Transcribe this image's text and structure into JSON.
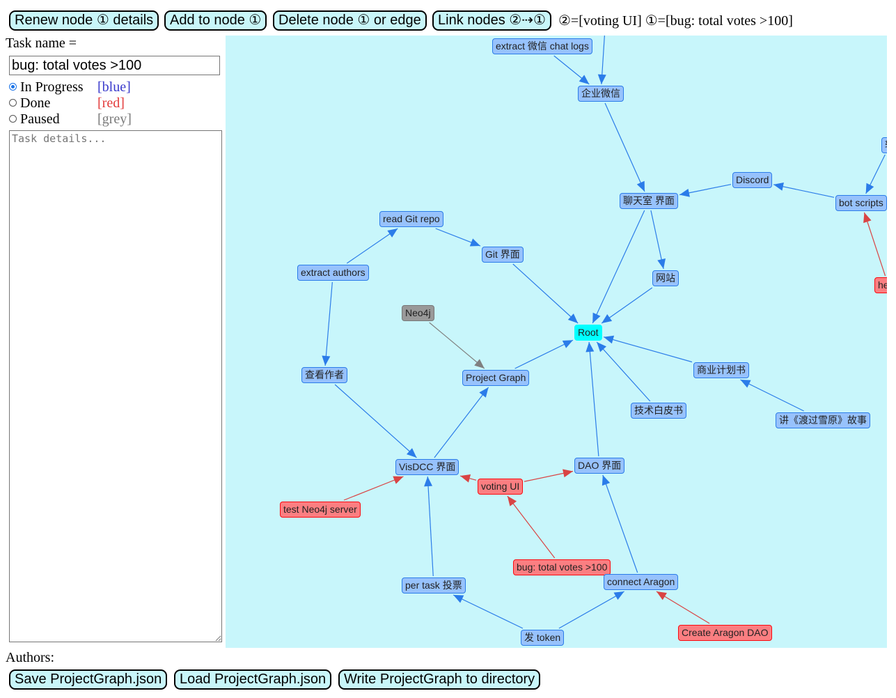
{
  "toolbar": {
    "renew": "Renew node ① details",
    "add": "Add to node ①",
    "delete": "Delete node ① or edge",
    "link": "Link nodes ②⇢①",
    "selection_legend": "②=[voting UI] ①=[bug: total votes >100]"
  },
  "form": {
    "task_name_label": "Task name =",
    "task_name_value": "bug: total votes >100",
    "statuses": [
      {
        "label": "In Progress",
        "color_hint": "[blue]",
        "checked": true
      },
      {
        "label": "Done",
        "color_hint": "[red]",
        "checked": false
      },
      {
        "label": "Paused",
        "color_hint": "[grey]",
        "checked": false
      }
    ],
    "details_placeholder": "Task details...",
    "authors_label": "Authors:"
  },
  "footer": {
    "save": "Save ProjectGraph.json",
    "load": "Load ProjectGraph.json",
    "write": "Write ProjectGraph to directory"
  },
  "colors": {
    "status_blue": "#3a3acc",
    "status_red": "#e33b3b",
    "status_grey": "#7a7a7a",
    "graph_bg": "#c8f6fb",
    "edge_blue": "#2b7ce9",
    "edge_red": "#d94444",
    "edge_grey": "#808080"
  },
  "graph": {
    "nodes": [
      {
        "id": "wechat_logs",
        "label": "extract 微信 chat logs",
        "kind": "blue"
      },
      {
        "id": "qywx",
        "label": "企业微信",
        "kind": "blue"
      },
      {
        "id": "zhuan",
        "label": "转",
        "kind": "blue"
      },
      {
        "id": "discord",
        "label": "Discord",
        "kind": "blue"
      },
      {
        "id": "bot",
        "label": "bot scripts",
        "kind": "blue"
      },
      {
        "id": "chatroom",
        "label": "聊天室 界面",
        "kind": "blue"
      },
      {
        "id": "hello",
        "label": "hello",
        "kind": "red"
      },
      {
        "id": "gitrepo",
        "label": "read Git repo",
        "kind": "blue"
      },
      {
        "id": "gitui",
        "label": "Git 界面",
        "kind": "blue"
      },
      {
        "id": "authors",
        "label": "extract authors",
        "kind": "blue"
      },
      {
        "id": "website",
        "label": "网站",
        "kind": "blue"
      },
      {
        "id": "neo4j",
        "label": "Neo4j",
        "kind": "grey"
      },
      {
        "id": "root",
        "label": "Root",
        "kind": "root"
      },
      {
        "id": "bizplan",
        "label": "商业计划书",
        "kind": "blue"
      },
      {
        "id": "viewauth",
        "label": "查看作者",
        "kind": "blue"
      },
      {
        "id": "pgraph",
        "label": "Project Graph",
        "kind": "blue"
      },
      {
        "id": "whitepaper",
        "label": "技术白皮书",
        "kind": "blue"
      },
      {
        "id": "story",
        "label": "讲《渡过雪原》故事",
        "kind": "blue"
      },
      {
        "id": "visdcc",
        "label": "VisDCC 界面",
        "kind": "blue"
      },
      {
        "id": "daoui",
        "label": "DAO 界面",
        "kind": "blue"
      },
      {
        "id": "voting",
        "label": "voting UI",
        "kind": "red"
      },
      {
        "id": "testneo",
        "label": "test Neo4j server",
        "kind": "red"
      },
      {
        "id": "bug",
        "label": "bug: total votes >100",
        "kind": "red"
      },
      {
        "id": "pertask",
        "label": "per task 投票",
        "kind": "blue"
      },
      {
        "id": "aragon",
        "label": "connect Aragon",
        "kind": "blue"
      },
      {
        "id": "createaragon",
        "label": "Create Aragon DAO",
        "kind": "red"
      },
      {
        "id": "token",
        "label": "发 token",
        "kind": "blue"
      }
    ],
    "edges": [
      {
        "from": "wechat_logs",
        "to": "qywx",
        "color": "blue"
      },
      {
        "from": "offscreen_top",
        "to": "qywx",
        "color": "blue"
      },
      {
        "from": "qywx",
        "to": "chatroom",
        "color": "blue"
      },
      {
        "from": "discord",
        "to": "chatroom",
        "color": "blue"
      },
      {
        "from": "bot",
        "to": "discord",
        "color": "blue"
      },
      {
        "from": "zhuan",
        "to": "bot",
        "color": "blue"
      },
      {
        "from": "hello",
        "to": "bot",
        "color": "red"
      },
      {
        "from": "chatroom",
        "to": "root",
        "color": "blue"
      },
      {
        "from": "chatroom",
        "to": "website",
        "color": "blue"
      },
      {
        "from": "website",
        "to": "root",
        "color": "blue"
      },
      {
        "from": "gitrepo",
        "to": "gitui",
        "color": "blue"
      },
      {
        "from": "gitui",
        "to": "root",
        "color": "blue"
      },
      {
        "from": "authors",
        "to": "gitrepo",
        "color": "blue"
      },
      {
        "from": "authors",
        "to": "viewauth",
        "color": "blue"
      },
      {
        "from": "neo4j",
        "to": "pgraph",
        "color": "grey"
      },
      {
        "from": "pgraph",
        "to": "root",
        "color": "blue"
      },
      {
        "from": "bizplan",
        "to": "root",
        "color": "blue"
      },
      {
        "from": "story",
        "to": "bizplan",
        "color": "blue"
      },
      {
        "from": "whitepaper",
        "to": "root",
        "color": "blue"
      },
      {
        "from": "daoui",
        "to": "root",
        "color": "blue"
      },
      {
        "from": "viewauth",
        "to": "visdcc",
        "color": "blue"
      },
      {
        "from": "visdcc",
        "to": "pgraph",
        "color": "blue"
      },
      {
        "from": "voting",
        "to": "visdcc",
        "color": "red"
      },
      {
        "from": "voting",
        "to": "daoui",
        "color": "red"
      },
      {
        "from": "testneo",
        "to": "visdcc",
        "color": "red"
      },
      {
        "from": "bug",
        "to": "voting",
        "color": "red"
      },
      {
        "from": "pertask",
        "to": "visdcc",
        "color": "blue"
      },
      {
        "from": "aragon",
        "to": "daoui",
        "color": "blue"
      },
      {
        "from": "createaragon",
        "to": "aragon",
        "color": "red"
      },
      {
        "from": "token",
        "to": "pertask",
        "color": "blue"
      },
      {
        "from": "token",
        "to": "aragon",
        "color": "blue"
      }
    ]
  }
}
